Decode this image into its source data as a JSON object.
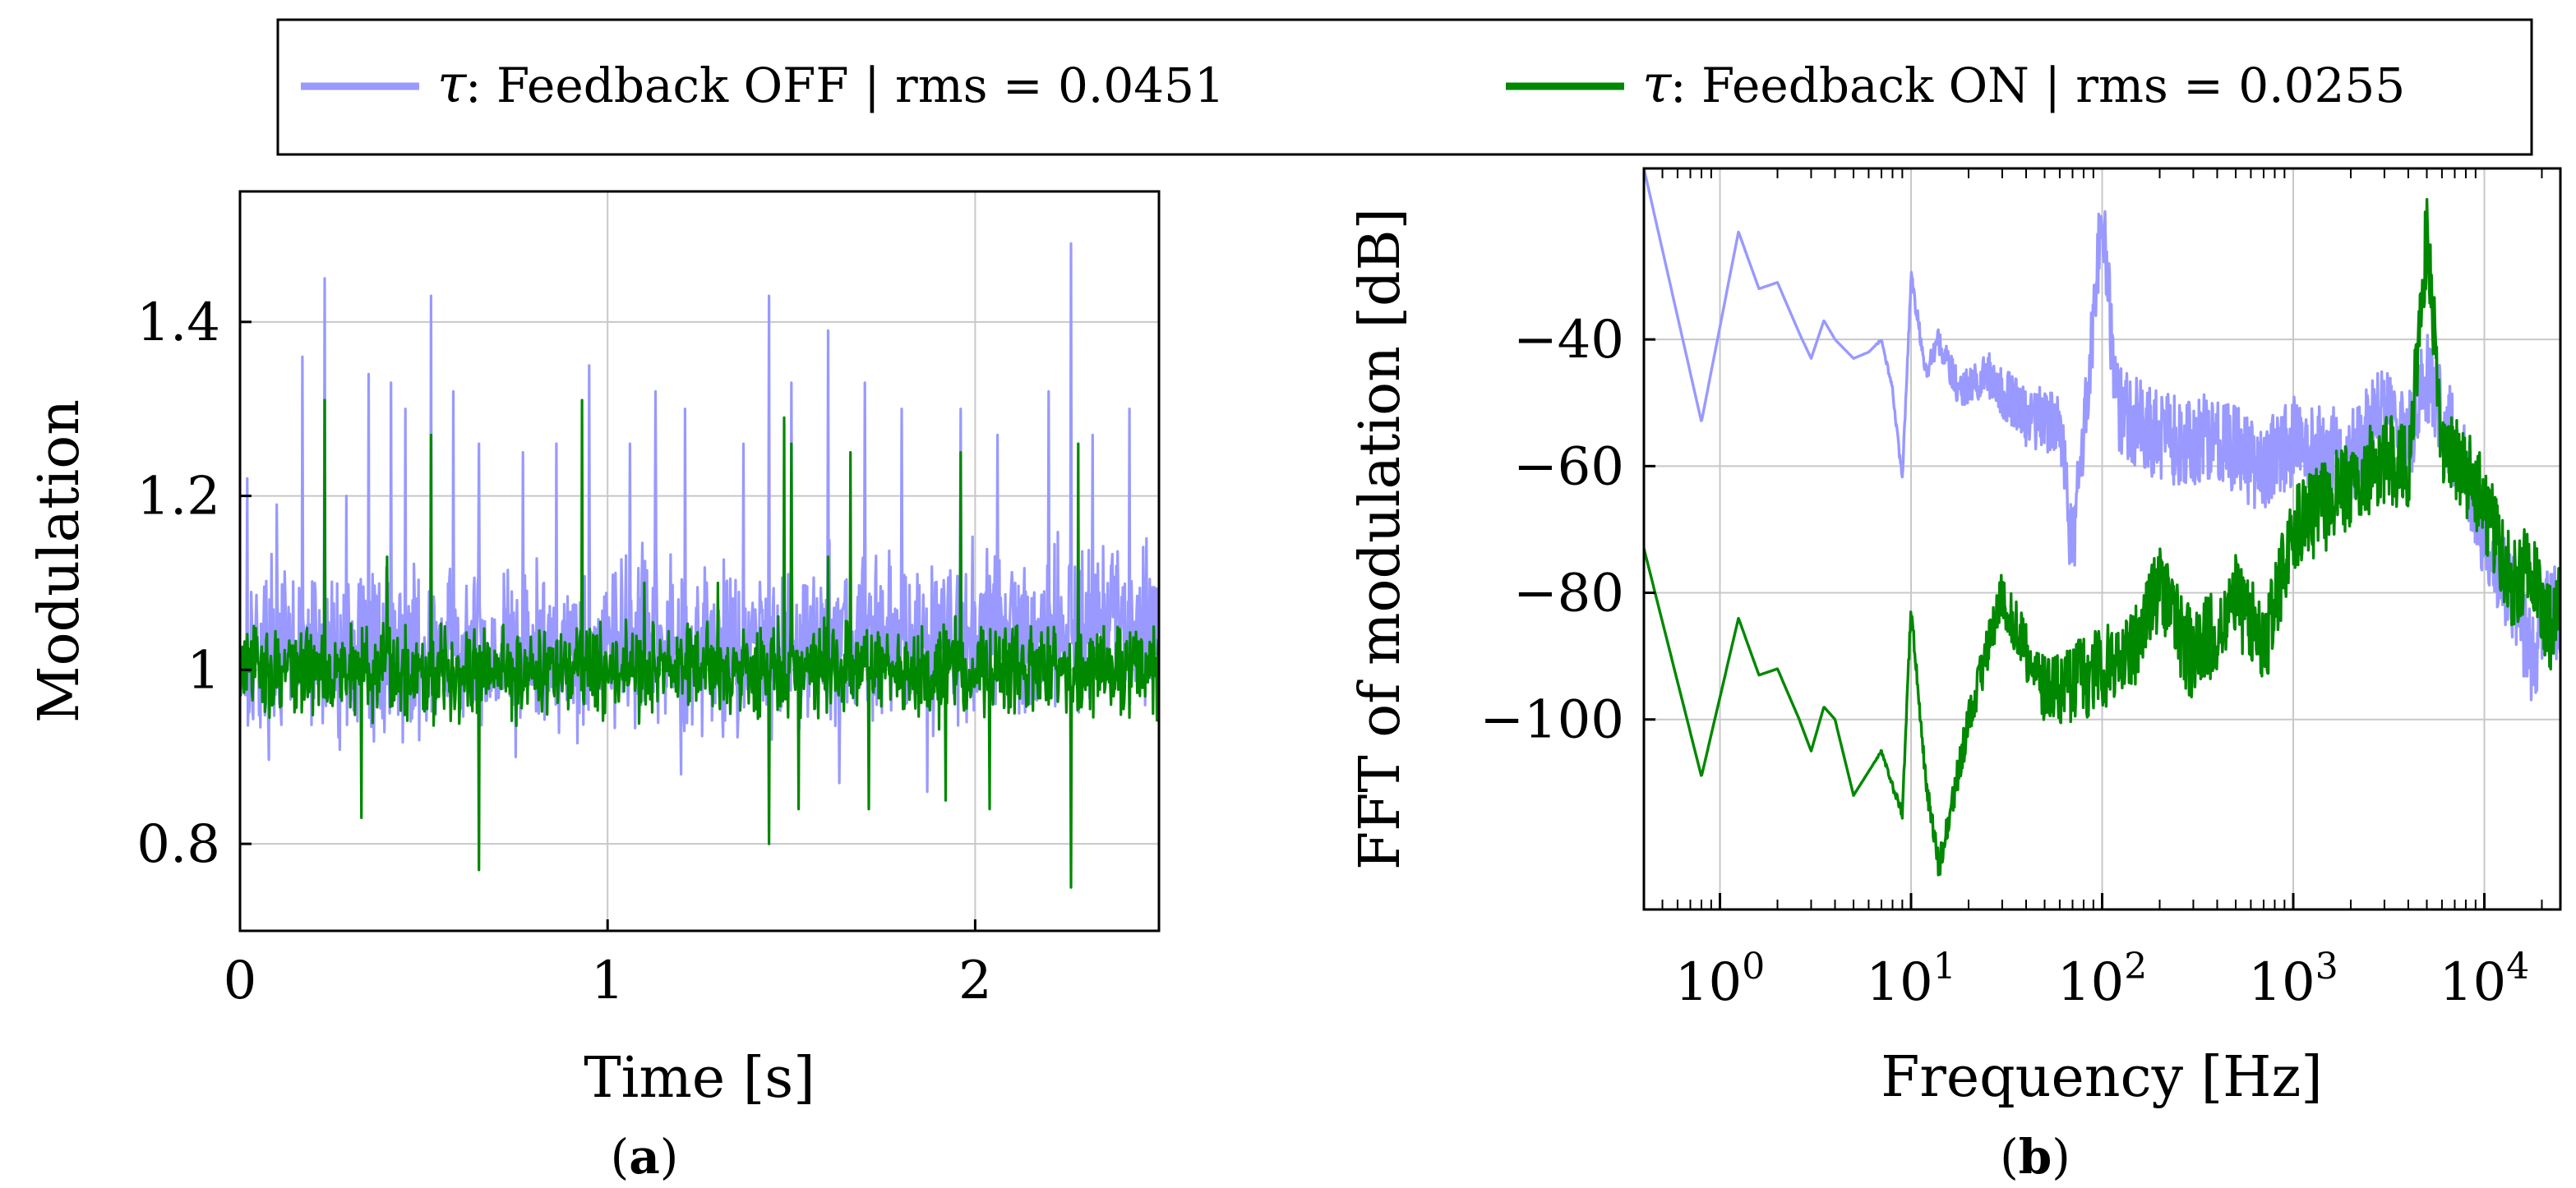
{
  "legend": {
    "entries": [
      {
        "symbol": "τ",
        "label": " : Feedback OFF | rms = 0.0451",
        "color": "#9999ff"
      },
      {
        "symbol": "τ",
        "label": " : Feedback ON | rms = 0.0255",
        "color": "#008800"
      }
    ]
  },
  "panels": {
    "a": {
      "caption_open": "(",
      "caption_letter": "a",
      "caption_close": ")"
    },
    "b": {
      "caption_open": "(",
      "caption_letter": "b",
      "caption_close": ")"
    }
  },
  "chart_data": [
    {
      "id": "a",
      "type": "line",
      "title": "",
      "xlabel": "Time [s]",
      "ylabel": "Modulation",
      "xlim": [
        0,
        2.5
      ],
      "ylim": [
        0.7,
        1.55
      ],
      "xticks": [
        0,
        1,
        2
      ],
      "xtick_labels": [
        "0",
        "1",
        "2"
      ],
      "yticks": [
        0.8,
        1,
        1.2,
        1.4
      ],
      "ytick_labels": [
        "0.8",
        "1",
        "1.2",
        "1.4"
      ],
      "grid": true,
      "series": [
        {
          "name": "τ : Feedback OFF | rms = 0.0451",
          "color": "#9999ff",
          "baseline": 1.02,
          "noise": 0.045,
          "spikes": [
            [
              0.02,
              1.22
            ],
            [
              0.1,
              1.19
            ],
            [
              0.17,
              1.36
            ],
            [
              0.23,
              1.45
            ],
            [
              0.29,
              1.2
            ],
            [
              0.35,
              1.34
            ],
            [
              0.41,
              1.33
            ],
            [
              0.45,
              1.3
            ],
            [
              0.52,
              1.43
            ],
            [
              0.58,
              1.32
            ],
            [
              0.65,
              1.26
            ],
            [
              0.77,
              1.25
            ],
            [
              0.86,
              1.26
            ],
            [
              0.95,
              1.35
            ],
            [
              1.06,
              1.26
            ],
            [
              1.13,
              1.32
            ],
            [
              1.21,
              1.3
            ],
            [
              1.37,
              1.26
            ],
            [
              1.44,
              1.43
            ],
            [
              1.5,
              1.33
            ],
            [
              1.6,
              1.39
            ],
            [
              1.7,
              1.33
            ],
            [
              1.8,
              1.3
            ],
            [
              1.96,
              1.3
            ],
            [
              2.06,
              1.27
            ],
            [
              2.2,
              1.32
            ],
            [
              2.26,
              1.49
            ],
            [
              2.32,
              1.27
            ],
            [
              2.42,
              1.3
            ],
            [
              0.75,
              0.9
            ],
            [
              1.2,
              0.88
            ],
            [
              1.63,
              0.87
            ],
            [
              1.87,
              0.86
            ]
          ]
        },
        {
          "name": "τ : Feedback ON | rms = 0.0255",
          "color": "#008800",
          "baseline": 1.0,
          "noise": 0.025,
          "spikes": [
            [
              0.23,
              1.31
            ],
            [
              0.33,
              0.83
            ],
            [
              0.4,
              1.13
            ],
            [
              0.52,
              1.27
            ],
            [
              0.53,
              0.95
            ],
            [
              0.65,
              0.77
            ],
            [
              0.93,
              1.31
            ],
            [
              1.1,
              1.1
            ],
            [
              1.3,
              1.1
            ],
            [
              1.44,
              0.8
            ],
            [
              1.48,
              1.29
            ],
            [
              1.5,
              1.26
            ],
            [
              1.52,
              0.84
            ],
            [
              1.6,
              1.13
            ],
            [
              1.66,
              1.25
            ],
            [
              1.71,
              0.84
            ],
            [
              1.92,
              0.85
            ],
            [
              1.96,
              1.25
            ],
            [
              2.04,
              0.84
            ],
            [
              2.26,
              0.75
            ],
            [
              2.28,
              1.26
            ],
            [
              2.35,
              1.05
            ]
          ]
        }
      ]
    },
    {
      "id": "b",
      "type": "line",
      "title": "",
      "xlabel": "Frequency [Hz]",
      "ylabel": "FFT of modulation [dB]",
      "xscale": "log",
      "xlim": [
        0.4,
        25000
      ],
      "ylim": [
        -130,
        -13
      ],
      "xticks": [
        1,
        10,
        100,
        1000,
        10000
      ],
      "xtick_labels": [
        {
          "base": "10",
          "exp": "0"
        },
        {
          "base": "10",
          "exp": "1"
        },
        {
          "base": "10",
          "exp": "2"
        },
        {
          "base": "10",
          "exp": "3"
        },
        {
          "base": "10",
          "exp": "4"
        }
      ],
      "yticks": [
        -40,
        -60,
        -80,
        -100
      ],
      "ytick_labels": [
        "−40",
        "−60",
        "−80",
        "−100"
      ],
      "grid": true,
      "series": [
        {
          "name": "τ : Feedback OFF | rms = 0.0451",
          "color": "#9999ff",
          "peaks": [
            [
              0.4,
              -13
            ],
            [
              0.8,
              -53
            ],
            [
              1.25,
              -23
            ],
            [
              1.6,
              -32
            ],
            [
              2.0,
              -31
            ],
            [
              2.6,
              -39
            ],
            [
              3.0,
              -43
            ],
            [
              3.5,
              -37
            ],
            [
              4.0,
              -40
            ],
            [
              5.0,
              -43
            ],
            [
              6.0,
              -42
            ],
            [
              7.0,
              -40
            ],
            [
              8.0,
              -48
            ],
            [
              9.0,
              -62
            ],
            [
              10,
              -30
            ],
            [
              12,
              -45
            ],
            [
              14,
              -40
            ],
            [
              18,
              -48
            ],
            [
              25,
              -45
            ],
            [
              40,
              -52
            ],
            [
              60,
              -52
            ],
            [
              70,
              -74
            ],
            [
              100,
              -20
            ],
            [
              120,
              -50
            ],
            [
              200,
              -55
            ],
            [
              400,
              -55
            ],
            [
              700,
              -60
            ],
            [
              1000,
              -55
            ],
            [
              2000,
              -58
            ],
            [
              3000,
              -50
            ],
            [
              4000,
              -55
            ],
            [
              5000,
              -45
            ],
            [
              8000,
              -60
            ],
            [
              10000,
              -70
            ],
            [
              14000,
              -80
            ],
            [
              18000,
              -90
            ],
            [
              22000,
              -80
            ],
            [
              25000,
              -85
            ]
          ],
          "noise": 9
        },
        {
          "name": "τ : Feedback ON | rms = 0.0255",
          "color": "#008800",
          "peaks": [
            [
              0.4,
              -73
            ],
            [
              0.8,
              -109
            ],
            [
              1.25,
              -84
            ],
            [
              1.6,
              -93
            ],
            [
              2.0,
              -92
            ],
            [
              2.6,
              -100
            ],
            [
              3.0,
              -105
            ],
            [
              3.5,
              -98
            ],
            [
              4.0,
              -100
            ],
            [
              5.0,
              -112
            ],
            [
              7.0,
              -105
            ],
            [
              9.0,
              -115
            ],
            [
              10,
              -82
            ],
            [
              12,
              -110
            ],
            [
              14,
              -123
            ],
            [
              20,
              -100
            ],
            [
              30,
              -80
            ],
            [
              50,
              -95
            ],
            [
              100,
              -92
            ],
            [
              150,
              -88
            ],
            [
              200,
              -78
            ],
            [
              300,
              -90
            ],
            [
              500,
              -80
            ],
            [
              700,
              -88
            ],
            [
              1000,
              -70
            ],
            [
              2000,
              -62
            ],
            [
              3000,
              -58
            ],
            [
              4000,
              -60
            ],
            [
              5000,
              -22
            ],
            [
              6000,
              -55
            ],
            [
              8000,
              -60
            ],
            [
              10000,
              -65
            ],
            [
              14000,
              -78
            ],
            [
              18000,
              -75
            ],
            [
              22000,
              -85
            ],
            [
              25000,
              -80
            ]
          ],
          "noise": 9
        }
      ]
    }
  ]
}
